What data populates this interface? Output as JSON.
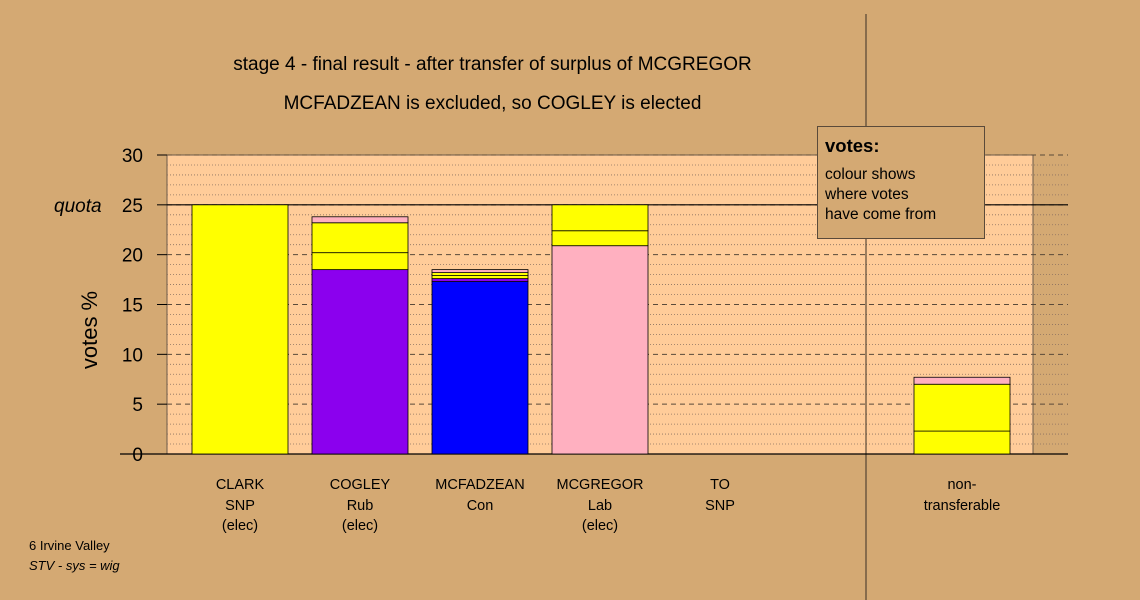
{
  "chart_data": {
    "type": "bar",
    "stacked": true,
    "title": "stage 4 - final result - after transfer of surplus of MCGREGOR",
    "subtitle": "MCFADZEAN is excluded, so COGLEY is elected",
    "ylabel": "votes %",
    "xlabel": "",
    "ylim": [
      0,
      30
    ],
    "yticks": [
      "0",
      "5",
      "10",
      "15",
      "20",
      "25",
      "30"
    ],
    "quota": {
      "label": "quota",
      "value": 25
    },
    "grid": "dashed major every 5, dotted minor every 1",
    "categories": [
      {
        "lines": [
          "CLARK",
          "SNP",
          "(elec)"
        ]
      },
      {
        "lines": [
          "COGLEY",
          "Rub",
          "(elec)"
        ]
      },
      {
        "lines": [
          "MCFADZEAN",
          "Con"
        ]
      },
      {
        "lines": [
          "MCGREGOR",
          "Lab",
          "(elec)"
        ]
      },
      {
        "lines": [
          "TO",
          "SNP"
        ]
      },
      {
        "lines": [
          "non-",
          "transferable"
        ]
      }
    ],
    "stacks": [
      [
        {
          "value": 25.0,
          "color": "#ffff00"
        }
      ],
      [
        {
          "value": 18.5,
          "color": "#8b00ee"
        },
        {
          "value": 1.7,
          "color": "#ffff00"
        },
        {
          "value": 3.0,
          "color": "#ffff00"
        },
        {
          "value": 0.6,
          "color": "#ffb0c0"
        }
      ],
      [
        {
          "value": 17.3,
          "color": "#0000ff"
        },
        {
          "value": 0.3,
          "color": "#8b00ee"
        },
        {
          "value": 0.3,
          "color": "#ffff00"
        },
        {
          "value": 0.3,
          "color": "#ffff00"
        },
        {
          "value": 0.3,
          "color": "#ffb0c0"
        }
      ],
      [
        {
          "value": 20.9,
          "color": "#ffb0c0"
        },
        {
          "value": 1.5,
          "color": "#ffff00"
        },
        {
          "value": 2.6,
          "color": "#ffff00"
        }
      ],
      [],
      [
        {
          "value": 2.3,
          "color": "#ffff00"
        },
        {
          "value": 4.7,
          "color": "#ffff00"
        },
        {
          "value": 0.7,
          "color": "#ffb0c0"
        }
      ]
    ]
  },
  "legend": {
    "heading": "votes:",
    "lines": [
      "colour shows",
      "where votes",
      "have come from"
    ]
  },
  "footer": {
    "area": "6 Irvine Valley",
    "system": "STV - sys = wig"
  },
  "colors": {
    "background": "#d4a973",
    "plot_area": "#ffcc99"
  }
}
